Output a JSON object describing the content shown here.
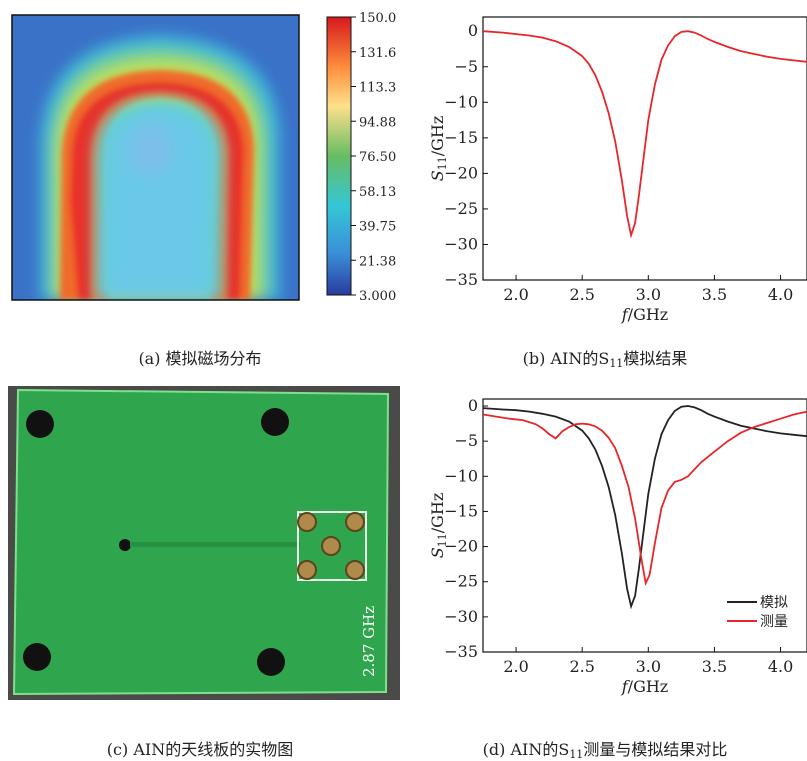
{
  "panel_a": {
    "caption": "(a) 模拟磁场分布",
    "colorbar_ticks": [
      "150.0",
      "131.6",
      "113.3",
      "94.88",
      "76.50",
      "58.13",
      "39.75",
      "21.38",
      "3.000"
    ]
  },
  "panel_b": {
    "caption_pre": "(b) AIN的S",
    "caption_sub": "11",
    "caption_post": "模拟结果"
  },
  "panel_c": {
    "caption": "(c) AIN的天线板的实物图",
    "board_label": "2.87 GHz"
  },
  "panel_d": {
    "caption_pre": "(d) AIN的S",
    "caption_sub": "11",
    "caption_post": "测量与模拟结果对比"
  },
  "colors": {
    "sim": "#e8262a",
    "sim_d": "#222222",
    "meas": "#e8262a",
    "board": "#2fa64e"
  },
  "chart_data": [
    {
      "type": "heatmap",
      "title": "",
      "colorbar": {
        "min": 3.0,
        "max": 150.0,
        "ticks": [
          150.0,
          131.6,
          113.3,
          94.88,
          76.5,
          58.13,
          39.75,
          21.38,
          3.0
        ]
      }
    },
    {
      "type": "line",
      "xlabel_italic": "f",
      "xlabel_rest": "/GHz",
      "ylabel_italic": "S",
      "ylabel_sub": "11",
      "ylabel_rest": "/GHz",
      "xlim": [
        1.75,
        4.2
      ],
      "ylim": [
        -35,
        2
      ],
      "xticks": [
        2.0,
        2.5,
        3.0,
        3.5,
        4.0
      ],
      "yticks": [
        0,
        -5,
        -10,
        -15,
        -20,
        -25,
        -30,
        -35
      ],
      "series": [
        {
          "x": [
            1.75,
            1.9,
            2.0,
            2.1,
            2.2,
            2.3,
            2.4,
            2.5,
            2.55,
            2.6,
            2.65,
            2.7,
            2.75,
            2.8,
            2.84,
            2.87,
            2.9,
            2.93,
            2.97,
            3.0,
            3.05,
            3.1,
            3.15,
            3.2,
            3.25,
            3.3,
            3.35,
            3.4,
            3.45,
            3.5,
            3.6,
            3.7,
            3.8,
            3.9,
            4.0,
            4.1,
            4.2
          ],
          "y": [
            0,
            -0.2,
            -0.4,
            -0.6,
            -0.9,
            -1.4,
            -2.2,
            -3.5,
            -4.6,
            -6.2,
            -8.5,
            -11.5,
            -15.5,
            -21,
            -26,
            -28.7,
            -27,
            -23,
            -17,
            -12.5,
            -7.5,
            -4,
            -2,
            -0.7,
            -0.1,
            0,
            -0.2,
            -0.6,
            -1.1,
            -1.5,
            -2.2,
            -2.8,
            -3.2,
            -3.6,
            -3.9,
            -4.1,
            -4.3
          ]
        }
      ]
    },
    {
      "type": "line",
      "xlabel_italic": "f",
      "xlabel_rest": "/GHz",
      "ylabel_italic": "S",
      "ylabel_sub": "11",
      "ylabel_rest": "/GHz",
      "xlim": [
        1.75,
        4.2
      ],
      "ylim": [
        -35,
        1
      ],
      "xticks": [
        2.0,
        2.5,
        3.0,
        3.5,
        4.0
      ],
      "yticks": [
        0,
        -5,
        -10,
        -15,
        -20,
        -25,
        -30,
        -35
      ],
      "legend_position": "bottom-right",
      "series": [
        {
          "name": "模拟",
          "x": [
            1.75,
            1.9,
            2.0,
            2.1,
            2.2,
            2.3,
            2.4,
            2.5,
            2.55,
            2.6,
            2.65,
            2.7,
            2.75,
            2.8,
            2.84,
            2.87,
            2.9,
            2.93,
            2.97,
            3.0,
            3.05,
            3.1,
            3.15,
            3.2,
            3.25,
            3.3,
            3.35,
            3.4,
            3.45,
            3.5,
            3.6,
            3.7,
            3.8,
            3.9,
            4.0,
            4.1,
            4.2
          ],
          "y": [
            -0.3,
            -0.5,
            -0.6,
            -0.8,
            -1.1,
            -1.5,
            -2.2,
            -3.5,
            -4.6,
            -6.2,
            -8.5,
            -11.5,
            -15.5,
            -21,
            -26,
            -28.5,
            -27,
            -23,
            -17,
            -12.5,
            -7.5,
            -4,
            -2,
            -0.7,
            -0.1,
            0,
            -0.2,
            -0.6,
            -1.1,
            -1.5,
            -2.2,
            -2.8,
            -3.2,
            -3.6,
            -3.9,
            -4.1,
            -4.3
          ]
        },
        {
          "name": "测量",
          "x": [
            1.75,
            1.85,
            1.95,
            2.05,
            2.15,
            2.2,
            2.25,
            2.3,
            2.35,
            2.4,
            2.45,
            2.5,
            2.55,
            2.6,
            2.65,
            2.7,
            2.75,
            2.8,
            2.85,
            2.9,
            2.95,
            2.98,
            3.01,
            3.05,
            3.1,
            3.15,
            3.2,
            3.25,
            3.3,
            3.35,
            3.4,
            3.5,
            3.6,
            3.7,
            3.8,
            3.9,
            4.0,
            4.1,
            4.2
          ],
          "y": [
            -1.2,
            -1.5,
            -1.8,
            -2.0,
            -2.6,
            -3.2,
            -4.0,
            -4.6,
            -3.6,
            -3.0,
            -2.6,
            -2.5,
            -2.6,
            -2.9,
            -3.5,
            -4.5,
            -6.0,
            -8.5,
            -11.5,
            -16,
            -22,
            -25.2,
            -24,
            -19.5,
            -14.5,
            -12,
            -10.8,
            -10.5,
            -10,
            -9,
            -8,
            -6.5,
            -5,
            -3.8,
            -3.0,
            -2.4,
            -1.8,
            -1.2,
            -0.8
          ]
        }
      ]
    }
  ]
}
